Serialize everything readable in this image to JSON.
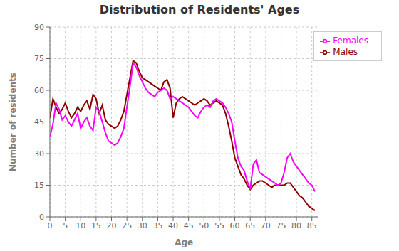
{
  "chart_data": {
    "type": "line",
    "title": "Distribution of Residents' Ages",
    "xlabel": "Age",
    "ylabel": "Number of residents",
    "x": [
      0,
      1,
      2,
      3,
      4,
      5,
      6,
      7,
      8,
      9,
      10,
      11,
      12,
      13,
      14,
      15,
      16,
      17,
      18,
      19,
      20,
      21,
      22,
      23,
      24,
      25,
      26,
      27,
      28,
      29,
      30,
      31,
      32,
      33,
      34,
      35,
      36,
      37,
      38,
      39,
      40,
      41,
      42,
      43,
      44,
      45,
      46,
      47,
      48,
      49,
      50,
      51,
      52,
      53,
      54,
      55,
      56,
      57,
      58,
      59,
      60,
      61,
      62,
      63,
      64,
      65,
      66,
      67,
      68,
      69,
      70,
      71,
      72,
      73,
      74,
      75,
      76,
      77,
      78,
      79,
      80,
      81,
      82,
      83,
      84,
      85,
      86
    ],
    "series": [
      {
        "name": "Males",
        "color": "#8B0000",
        "values": [
          47,
          56,
          52,
          49,
          51,
          54,
          50,
          47,
          49,
          52,
          50,
          53,
          55,
          51,
          58,
          56,
          49,
          53,
          46,
          44,
          43,
          42,
          43,
          46,
          50,
          58,
          66,
          74,
          73,
          69,
          66,
          65,
          64,
          63,
          62,
          61,
          60,
          64,
          65,
          61,
          47,
          54,
          56,
          57,
          56,
          55,
          54,
          53,
          54,
          55,
          56,
          55,
          53,
          54,
          55,
          54,
          53,
          49,
          43,
          36,
          28,
          24,
          20,
          18,
          15,
          13,
          15,
          16,
          17,
          17,
          16,
          15,
          14,
          15,
          15,
          15,
          15,
          16,
          16,
          14,
          12,
          10,
          9,
          7,
          5,
          4,
          3
        ]
      },
      {
        "name": "Females",
        "color": "#FF00FF",
        "values": [
          38,
          44,
          54,
          51,
          46,
          48,
          45,
          43,
          46,
          49,
          42,
          45,
          47,
          43,
          41,
          52,
          50,
          45,
          40,
          36,
          35,
          34,
          35,
          38,
          42,
          52,
          62,
          73,
          71,
          67,
          64,
          61,
          59,
          58,
          57,
          59,
          60,
          61,
          60,
          56,
          57,
          56,
          55,
          54,
          53,
          52,
          50,
          48,
          47,
          50,
          52,
          53,
          52,
          55,
          56,
          55,
          54,
          52,
          49,
          45,
          36,
          28,
          24,
          22,
          17,
          13,
          25,
          27,
          21,
          20,
          19,
          18,
          17,
          16,
          15,
          16,
          21,
          28,
          30,
          26,
          24,
          22,
          20,
          18,
          16,
          15,
          12
        ]
      }
    ],
    "xlim": [
      0,
      87
    ],
    "ylim": [
      0,
      90
    ],
    "xticks": [
      0,
      5,
      10,
      15,
      20,
      25,
      30,
      35,
      40,
      45,
      50,
      55,
      60,
      65,
      70,
      75,
      80,
      85
    ],
    "yticks": [
      0,
      15,
      30,
      45,
      60,
      75,
      90
    ],
    "grid": true,
    "legend": "upper right"
  }
}
